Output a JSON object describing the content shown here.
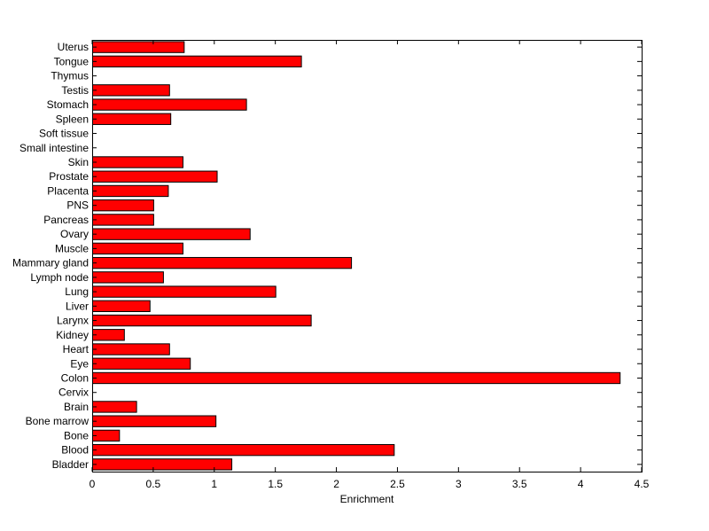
{
  "chart_data": {
    "type": "bar",
    "orientation": "horizontal",
    "categories": [
      "Bladder",
      "Blood",
      "Bone",
      "Bone marrow",
      "Brain",
      "Cervix",
      "Colon",
      "Eye",
      "Heart",
      "Kidney",
      "Larynx",
      "Liver",
      "Lung",
      "Lymph node",
      "Mammary gland",
      "Muscle",
      "Ovary",
      "Pancreas",
      "PNS",
      "Placenta",
      "Prostate",
      "Skin",
      "Small intestine",
      "Soft tissue",
      "Spleen",
      "Stomach",
      "Testis",
      "Thymus",
      "Tongue",
      "Uterus"
    ],
    "values": [
      1.14,
      2.47,
      0.22,
      1.01,
      0.36,
      0,
      4.32,
      0.8,
      0.63,
      0.26,
      1.79,
      0.47,
      1.5,
      0.58,
      2.12,
      0.74,
      1.29,
      0.5,
      0.5,
      0.62,
      1.02,
      0.74,
      0,
      0,
      0.64,
      1.26,
      0.63,
      0,
      1.71,
      0.75
    ],
    "xlabel": "Enrichment",
    "ylabel": "",
    "title": "",
    "xlim": [
      0,
      4.5
    ],
    "xticks": [
      "0",
      "0.5",
      "1",
      "1.5",
      "2",
      "2.5",
      "3",
      "3.5",
      "4",
      "4.5"
    ],
    "grid": false,
    "bar_color": "#ff0000",
    "bar_edge_color": "#000000"
  }
}
